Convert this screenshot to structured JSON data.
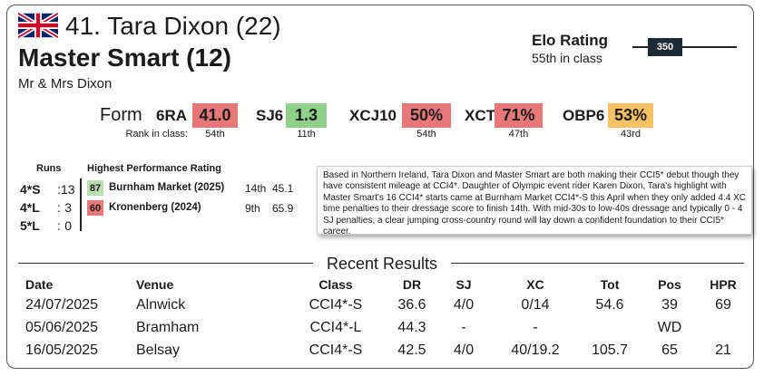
{
  "header": {
    "rider": "41. Tara Dixon (22)",
    "horse": "Master Smart (12)",
    "owner": "Mr & Mrs Dixon"
  },
  "elo": {
    "label": "Elo Rating",
    "rank": "55th in class",
    "value": "350"
  },
  "form": {
    "label": "Form",
    "rank_label": "Rank in class:",
    "items": [
      {
        "name": "6RA",
        "value": "41.0",
        "rank": "54th",
        "color": "#e87878"
      },
      {
        "name": "SJ6",
        "value": "1.3",
        "rank": "11th",
        "color": "#8fd08a"
      },
      {
        "name": "XCJ10",
        "value": "50%",
        "rank": "54th",
        "color": "#e87878"
      },
      {
        "name": "XCT",
        "value": "71%",
        "rank": "47th",
        "color": "#e87878"
      },
      {
        "name": "OBP6",
        "value": "53%",
        "rank": "43rd",
        "color": "#f6c164"
      }
    ]
  },
  "runs": {
    "heading": "Runs",
    "separator": ":",
    "rows": [
      {
        "label": "4*S",
        "count": "13"
      },
      {
        "label": "4*L",
        "count": "3"
      },
      {
        "label": "5*L",
        "count": "0"
      }
    ]
  },
  "hpr": {
    "heading": "Highest Performance Rating",
    "rows": [
      {
        "rating": "87",
        "event": "Burnham Market (2025)",
        "place": "14th",
        "score": "45.1",
        "color": "#b9deb0"
      },
      {
        "rating": "60",
        "event": "Kronenberg (2024)",
        "place": "9th",
        "score": "65.9",
        "color": "#e87878"
      }
    ]
  },
  "bio": "Based in Northern Ireland, Tara Dixon and Master Smart are both making their CCI5* debut though they have consistent mileage at CCI4*. Daughter of Olympic event rider Karen Dixon, Tara's highlight with Master Smart's 16 CCI4* starts came at Burnham Market CCI4*-S this April when they only added 4.4 XC time penalties to their dressage score to finish 14th. With mid-30s to low-40s dressage and typically 0 - 4 SJ penalties, a clear jumping cross-country round will lay down a confident foundation to their CCI5* career.",
  "results": {
    "title": "Recent Results",
    "columns": [
      "Date",
      "Venue",
      "Class",
      "DR",
      "SJ",
      "XC",
      "Tot",
      "Pos",
      "HPR"
    ],
    "rows": [
      [
        "24/07/2025",
        "Alnwick",
        "CCI4*-S",
        "36.6",
        "4/0",
        "0/14",
        "54.6",
        "39",
        "69"
      ],
      [
        "05/06/2025",
        "Bramham",
        "CCI4*-L",
        "44.3",
        "-",
        "-",
        "",
        "WD",
        ""
      ],
      [
        "16/05/2025",
        "Belsay",
        "CCI4*-S",
        "42.5",
        "4/0",
        "40/19.2",
        "105.7",
        "65",
        "21"
      ]
    ]
  }
}
